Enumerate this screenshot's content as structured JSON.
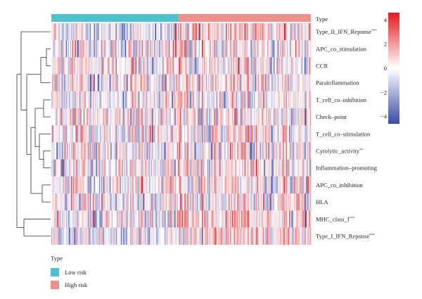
{
  "chart_data": {
    "type": "heatmap",
    "annotation_title": "Type",
    "groups": [
      {
        "name": "Low risk",
        "color": "#4bc2cc",
        "fraction": 0.49
      },
      {
        "name": "High risk",
        "color": "#ef8f8a",
        "fraction": 0.51
      }
    ],
    "rows": [
      {
        "label": "Type_II_IFN_Reponse",
        "sig": "***"
      },
      {
        "label": "APC_co_stimulation",
        "sig": ""
      },
      {
        "label": "CCR",
        "sig": ""
      },
      {
        "label": "Parainflammation",
        "sig": ""
      },
      {
        "label": "T_cell_co–inhibition",
        "sig": ""
      },
      {
        "label": "Check–point",
        "sig": ""
      },
      {
        "label": "T_cell_co–stimulation",
        "sig": ""
      },
      {
        "label": "Cytolytic_activity",
        "sig": "**"
      },
      {
        "label": "Inflammation–promoting",
        "sig": ""
      },
      {
        "label": "APC_co_inhibition",
        "sig": ""
      },
      {
        "label": "HLA",
        "sig": ""
      },
      {
        "label": "MHC_class_I",
        "sig": "***"
      },
      {
        "label": "Type_I_IFN_Reponse",
        "sig": "***"
      }
    ],
    "colorbar": {
      "ticks": [
        4,
        2,
        0,
        -2,
        -4
      ],
      "tick_labels": [
        "4",
        "2",
        "0",
        "−2",
        "−4"
      ],
      "range": [
        -4.6,
        4.6
      ],
      "colors": {
        "high": "#e41a1c",
        "mid": "#ffffff",
        "low": "#3b4ba8"
      }
    },
    "legend_placement": "bottom-left"
  }
}
